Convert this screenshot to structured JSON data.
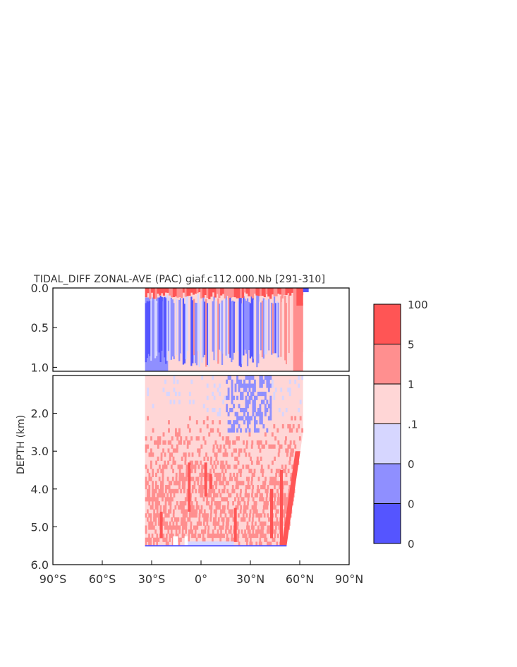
{
  "chart_data": {
    "type": "heatmap",
    "title": "TIDAL_DIFF ZONAL-AVE (PAC) giaf.c112.000.Nb [291-310]",
    "ylabel": "DEPTH (km)",
    "xlabel": "",
    "x_ticks": [
      -90,
      -60,
      -30,
      0,
      30,
      60,
      90
    ],
    "x_tick_labels": [
      "90°S",
      "60°S",
      "30°S",
      "0°",
      "30°N",
      "60°N",
      "90°N"
    ],
    "upper_panel": {
      "ylim": [
        0.0,
        1.05
      ],
      "y_ticks": [
        0.0,
        0.5,
        1.0
      ],
      "y_tick_labels": [
        "0.0",
        "0.5",
        "1.0"
      ]
    },
    "lower_panel": {
      "ylim": [
        1.0,
        6.0
      ],
      "y_ticks": [
        2.0,
        3.0,
        4.0,
        5.0,
        6.0
      ],
      "y_tick_labels": [
        "2.0",
        "3.0",
        "4.0",
        "5.0",
        "6.0"
      ]
    },
    "colorbar": {
      "levels": [
        "100",
        "5",
        "1",
        ".1",
        "0",
        "0",
        "0"
      ],
      "colors": [
        "#ff5555",
        "#ff8f8f",
        "#ffd6d6",
        "#d6d6ff",
        "#8f8fff",
        "#5555ff"
      ]
    },
    "data_extent": {
      "lat_min": -34,
      "lat_max_surface": 62,
      "lat_max_bottom": 52,
      "bottom_depth_km": 5.5
    }
  }
}
